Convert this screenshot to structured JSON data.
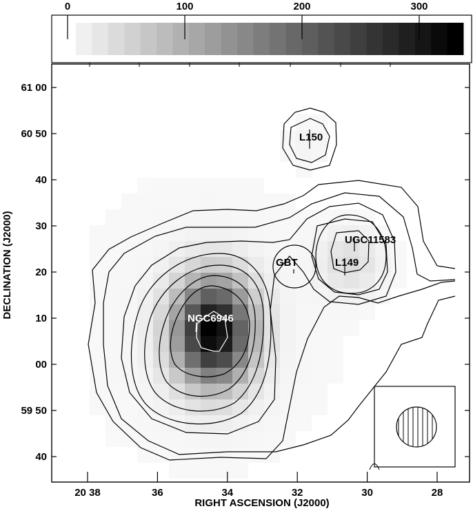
{
  "chart_data": {
    "type": "heatmap",
    "subtype": "greyscale image with contour overlay",
    "xlabel": "RIGHT ASCENSION (J2000)",
    "ylabel": "DECLINATION (J2000)",
    "x_ticks": [
      "20 38",
      "36",
      "34",
      "32",
      "30",
      "28"
    ],
    "x_tick_values_min": [
      38,
      36,
      34,
      32,
      30,
      28
    ],
    "y_ticks": [
      "61 00",
      "60 50",
      "40",
      "30",
      "20",
      "10",
      "00",
      "59 50",
      "40"
    ],
    "y_tick_values_arcmin": [
      0,
      -10,
      -20,
      -30,
      -40,
      -50,
      -60,
      -70,
      -80
    ],
    "xlim_min": [
      38.6,
      27.3
    ],
    "colorbar": {
      "ticks": [
        "0",
        "100",
        "200",
        "300"
      ],
      "range": [
        0,
        340
      ],
      "palette": "white-to-black",
      "steps": 24
    },
    "sources": [
      {
        "name": "L150",
        "ra_min": 31.7,
        "dec": "60 48",
        "label_color": "#000000"
      },
      {
        "name": "UGC11583",
        "ra_min": 30.4,
        "dec": "60 25",
        "label_color": "#000000"
      },
      {
        "name": "L149",
        "ra_min": 30.7,
        "dec": "60 20",
        "label_color": "#000000"
      },
      {
        "name": "NGC6946",
        "ra_min": 34.8,
        "dec": "60 09",
        "label_color": "#ffffff"
      },
      {
        "name": "GBT",
        "ra_min": 32.1,
        "dec": "60 20",
        "label_color": "#000000"
      }
    ],
    "peaks": [
      {
        "name": "NGC6946",
        "ra_min": 34.4,
        "dec": "60 07",
        "value": 340
      },
      {
        "name": "UGC11583",
        "ra_min": 30.5,
        "dec": "60 22",
        "value": 40
      }
    ],
    "beam": "hatched circle, lower-right inset"
  }
}
